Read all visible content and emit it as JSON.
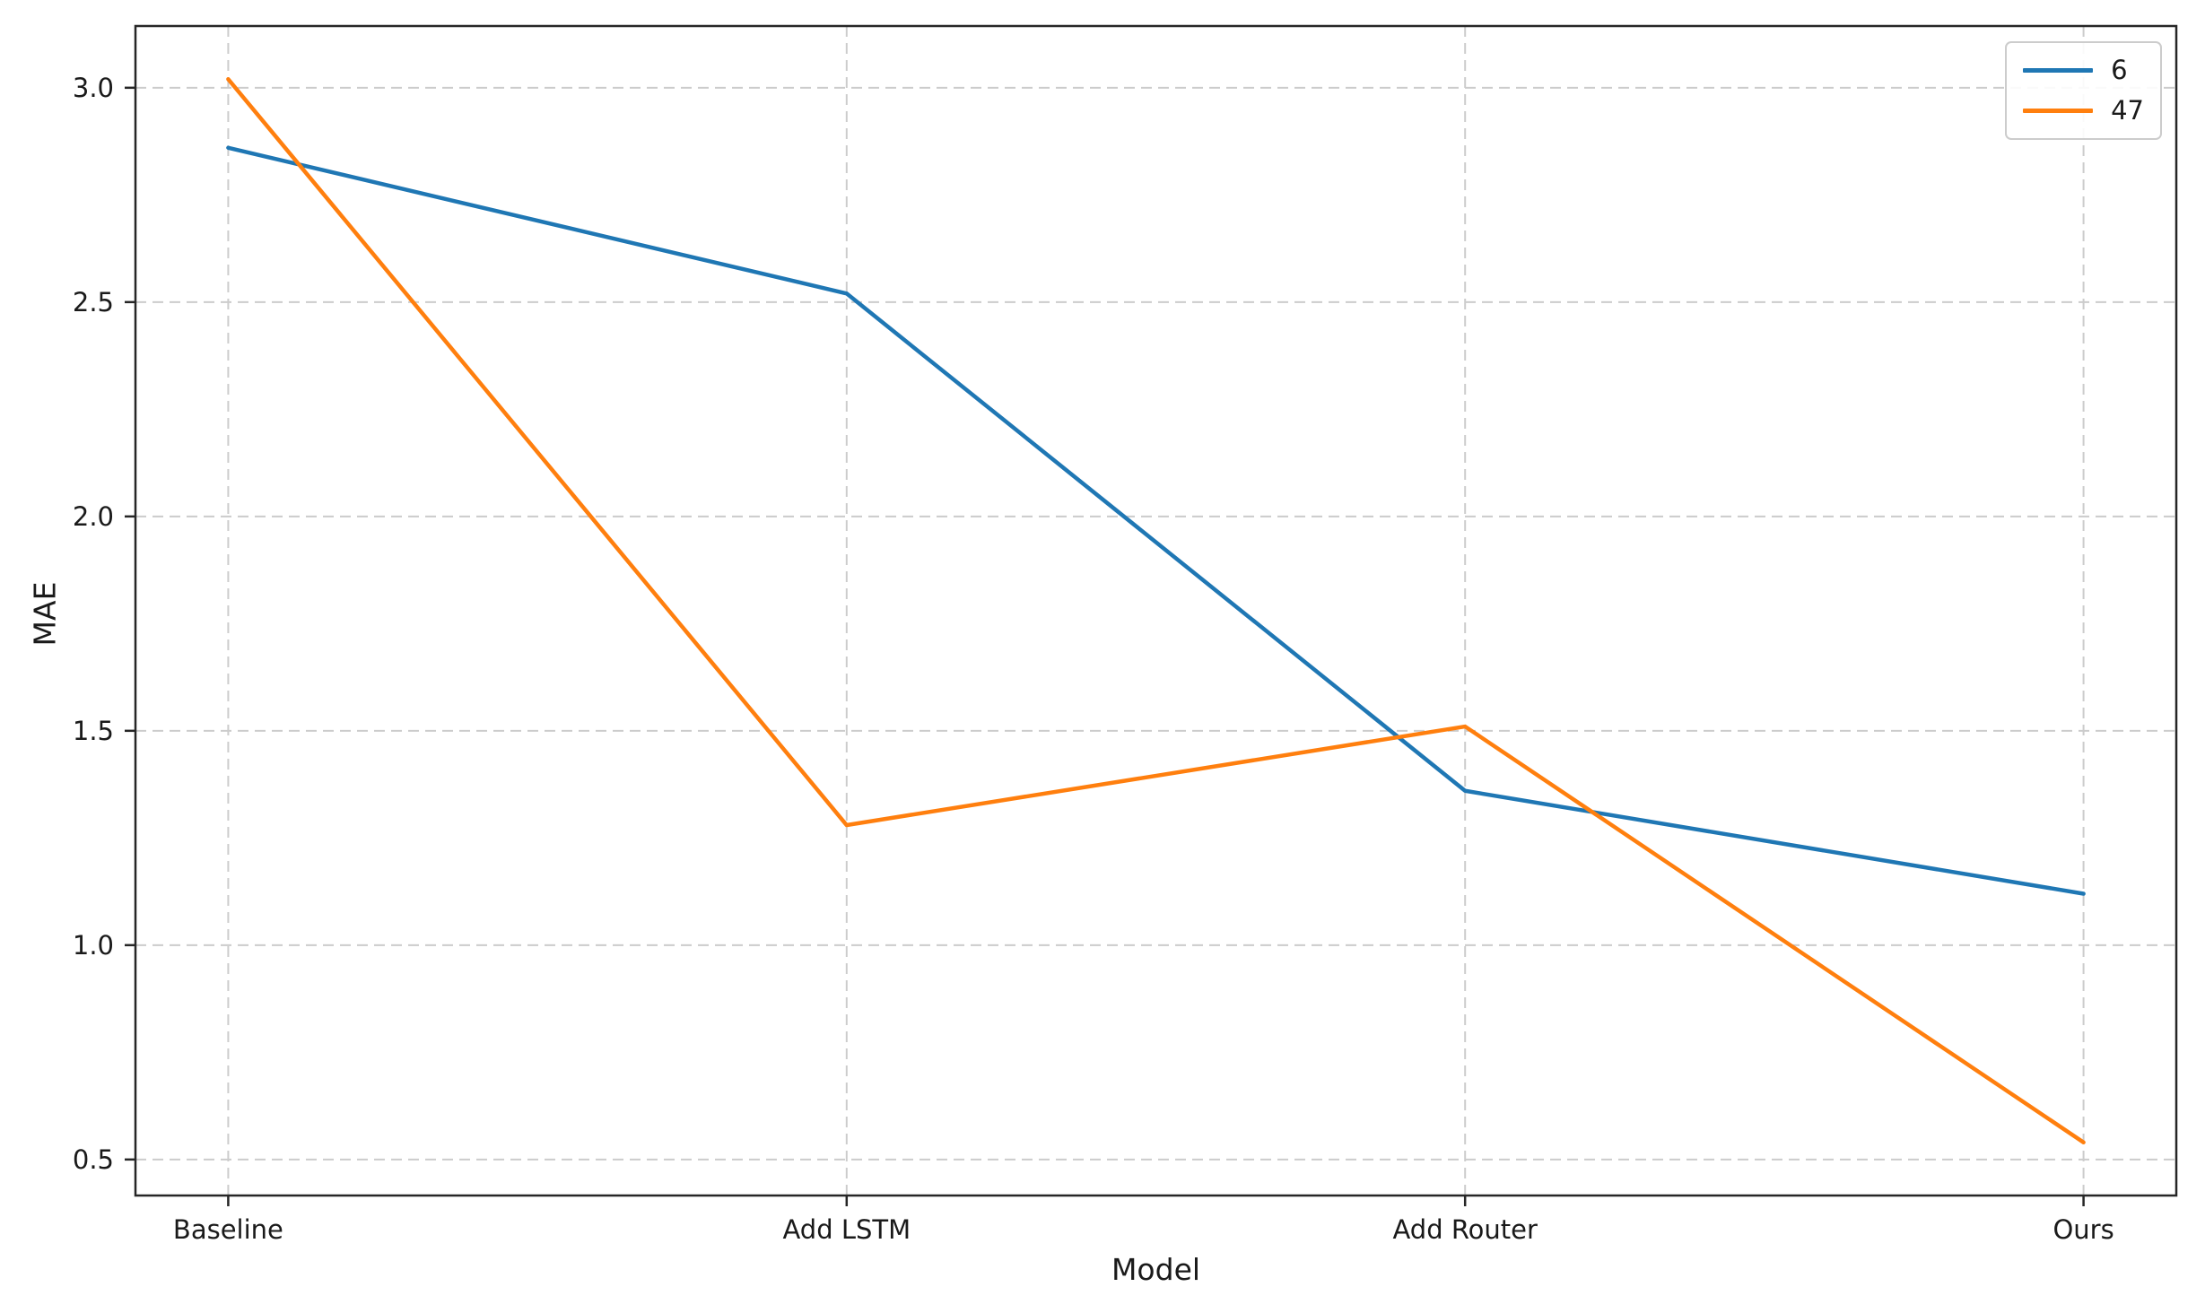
{
  "figure": {
    "background": "#ffffff"
  },
  "chart_data": {
    "type": "line",
    "title": "",
    "xlabel": "Model",
    "ylabel": "MAE",
    "categories": [
      "Baseline",
      "Add LSTM",
      "Add Router",
      "Ours"
    ],
    "series": [
      {
        "name": "6",
        "color": "#1f77b4",
        "values": [
          2.86,
          2.52,
          1.36,
          1.12
        ]
      },
      {
        "name": "47",
        "color": "#ff7f0e",
        "values": [
          3.02,
          1.28,
          1.51,
          0.54
        ]
      }
    ],
    "yticks": [
      0.5,
      1.0,
      1.5,
      2.0,
      2.5,
      3.0
    ],
    "ytick_labels": [
      "0.5",
      "1.0",
      "1.5",
      "2.0",
      "2.5",
      "3.0"
    ],
    "ylim": [
      0.416,
      3.144
    ],
    "xlim": [
      -0.15,
      3.15
    ],
    "grid": true,
    "grid_style": "dashed",
    "legend_position": "upper right",
    "style": {
      "grid_color": "#cccccc",
      "axis_color": "#262626",
      "text_color": "#1a1a1a"
    }
  }
}
